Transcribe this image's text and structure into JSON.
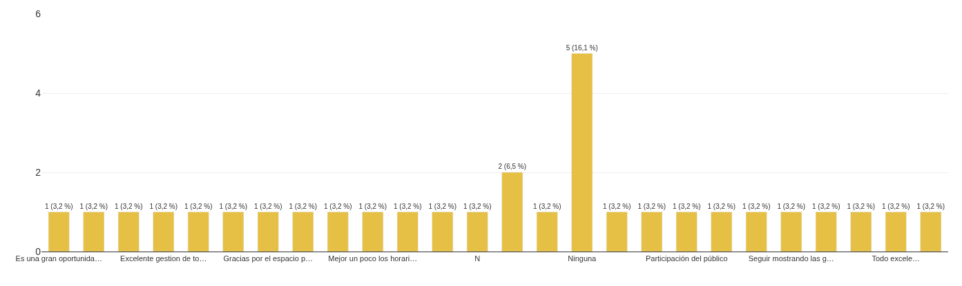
{
  "chart_data": {
    "type": "bar",
    "categories": [
      "Es una gran oportunida…",
      null,
      null,
      "Excelente gestion de to…",
      null,
      null,
      "Gracias por el espacio p…",
      null,
      null,
      "Mejor un poco los horari…",
      null,
      null,
      "N",
      null,
      null,
      "Ninguna",
      null,
      null,
      "Participación del público",
      null,
      null,
      "Seguir mostrando las g…",
      null,
      null,
      "Todo excele…",
      null
    ],
    "values": [
      1,
      1,
      1,
      1,
      1,
      1,
      1,
      1,
      1,
      1,
      1,
      1,
      1,
      2,
      1,
      5,
      1,
      1,
      1,
      1,
      1,
      1,
      1,
      1,
      1,
      1
    ],
    "value_labels": [
      "1 (3,2 %)",
      "1 (3,2 %)",
      "1 (3,2 %)",
      "1 (3,2 %)",
      "1 (3,2 %)",
      "1 (3,2 %)",
      "1 (3,2 %)",
      "1 (3,2 %)",
      "1 (3,2 %)",
      "1 (3,2 %)",
      "1 (3,2 %)",
      "1 (3,2 %)",
      "1 (3,2 %)",
      "2 (6,5 %)",
      "1 (3,2 %)",
      "5 (16,1 %)",
      "1 (3,2 %)",
      "1 (3,2 %)",
      "1 (3,2 %)",
      "1 (3,2 %)",
      "1 (3,2 %)",
      "1 (3,2 %)",
      "1 (3,2 %)",
      "1 (3,2 %)",
      "1 (3,2 %)",
      "1 (3,2 %)"
    ],
    "color": "#e6bf45",
    "ylim": [
      0,
      6
    ],
    "yticks": [
      0,
      2,
      4,
      6
    ],
    "grid": "y"
  }
}
